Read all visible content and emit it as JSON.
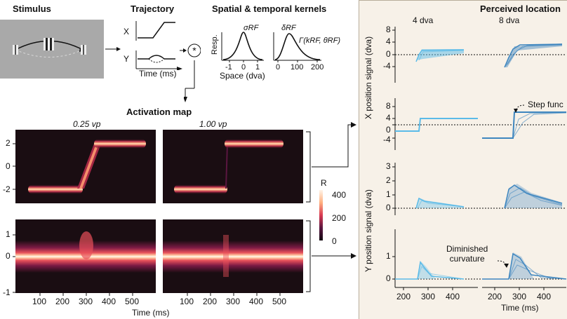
{
  "stimulus": {
    "title": "Stimulus"
  },
  "trajectory": {
    "title": "Trajectory",
    "x_label": "X",
    "y_label": "Y",
    "time_label": "Time (ms)"
  },
  "kernels": {
    "title": "Spatial & temporal kernels",
    "resp_label": "Resp.",
    "sigma_label": "σRF",
    "delta_label": "δRF",
    "gamma_label": "Γ(kRF, θRF)",
    "space_ticks": [
      "-1",
      "0",
      "1"
    ],
    "space_label": "Space (dva)",
    "time_ticks": [
      "0",
      "100",
      "200"
    ]
  },
  "activation": {
    "title": "Activation map",
    "col1": "0.25 vp",
    "col2": "1.00 vp",
    "top_yticks": [
      "2",
      "0",
      "-2"
    ],
    "bottom_yticks": [
      "1",
      "0",
      "-1"
    ],
    "xticks": [
      "100",
      "200",
      "300",
      "400",
      "500"
    ],
    "xticks2": [
      "100",
      "200",
      "300",
      "400",
      "500"
    ],
    "xlabel": "Time (ms)",
    "colorbar_label": "R",
    "colorbar_ticks": [
      "400",
      "200",
      "0"
    ]
  },
  "perceived": {
    "title": "Perceived location",
    "col1": "4 dva",
    "col2": "8 dva",
    "x_axis_label": "X position signal (dva)",
    "y_axis_label": "Y position signal (dva)",
    "p1_yticks": [
      "8",
      "4",
      "0",
      "-4"
    ],
    "p2_yticks": [
      "8",
      "4",
      "0",
      "-4"
    ],
    "p3_yticks": [
      "3",
      "2",
      "1",
      "0"
    ],
    "p4_yticks": [
      "1",
      "0"
    ],
    "xticks": [
      "200",
      "300",
      "400"
    ],
    "xticks2": [
      "200",
      "300",
      "400"
    ],
    "xlabel": "Time (ms)",
    "annot_step": "Step func",
    "annot_diminished": "Diminished\ncurvature"
  },
  "colors": {
    "light_blue": "#5bbbe8",
    "dark_blue": "#3e86bf",
    "panel_bg": "#f7f1e8",
    "heat_dark": "#1a0d12"
  }
}
